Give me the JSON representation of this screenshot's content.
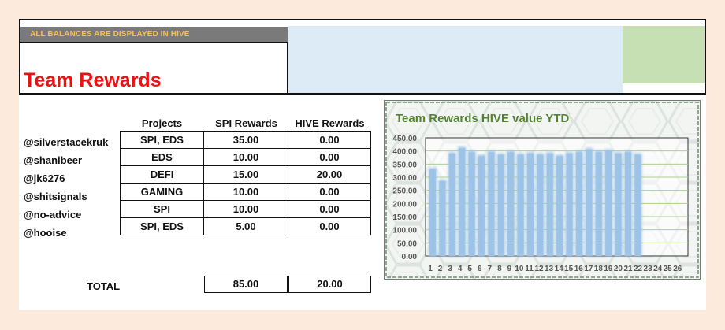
{
  "header": {
    "banner": "ALL BALANCES ARE DISPLAYED IN HIVE",
    "title": "Team Rewards"
  },
  "table": {
    "columns": [
      "Projects",
      "SPI Rewards",
      "HIVE Rewards"
    ],
    "rows": [
      {
        "user": "@silverstacekruk",
        "projects": "SPI, EDS",
        "spi": "35.00",
        "hive": "0.00"
      },
      {
        "user": "@shanibeer",
        "projects": "EDS",
        "spi": "10.00",
        "hive": "0.00"
      },
      {
        "user": "@jk6276",
        "projects": "DEFI",
        "spi": "15.00",
        "hive": "20.00"
      },
      {
        "user": "@shitsignals",
        "projects": "GAMING",
        "spi": "10.00",
        "hive": "0.00"
      },
      {
        "user": "@no-advice",
        "projects": "SPI",
        "spi": "10.00",
        "hive": "0.00"
      },
      {
        "user": "@hooise",
        "projects": "SPI, EDS",
        "spi": "5.00",
        "hive": "0.00"
      }
    ],
    "total": {
      "label": "TOTAL",
      "spi": "85.00",
      "hive": "20.00"
    }
  },
  "colors": {
    "title": "#ee1111",
    "banner_text": "#f6c24f",
    "banner_bg": "#7a7a7a",
    "blue_panel": "#ddebf7",
    "green_panel": "#c6e0b4",
    "chart_title": "#548235",
    "bar": "#9dc3e6",
    "gridline": "#a9d18e"
  },
  "chart_data": {
    "type": "bar",
    "title": "Team Rewards HIVE value YTD",
    "categories": [
      "1",
      "2",
      "3",
      "4",
      "5",
      "6",
      "7",
      "8",
      "9",
      "10",
      "11",
      "12",
      "13",
      "14",
      "15",
      "16",
      "17",
      "18",
      "19",
      "20",
      "21",
      "22",
      "23",
      "24",
      "25",
      "26"
    ],
    "values": [
      330,
      285,
      390,
      410,
      395,
      380,
      395,
      385,
      395,
      385,
      390,
      385,
      390,
      380,
      390,
      395,
      405,
      395,
      400,
      390,
      395,
      385,
      0,
      0,
      0,
      0
    ],
    "yticks": [
      "0.00",
      "50.00",
      "100.00",
      "150.00",
      "200.00",
      "250.00",
      "300.00",
      "350.00",
      "400.00",
      "450.00"
    ],
    "ylim": [
      0,
      450
    ],
    "grid": true,
    "legend": "none"
  }
}
